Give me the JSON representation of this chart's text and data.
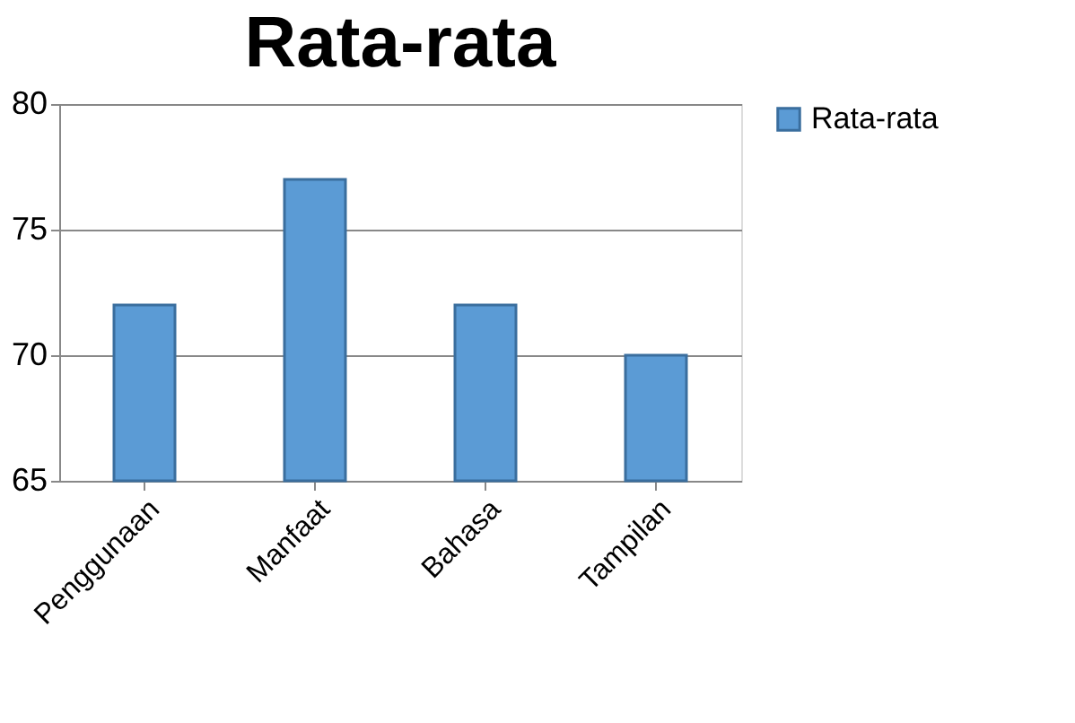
{
  "chart_data": {
    "type": "bar",
    "title": "Rata-rata",
    "categories": [
      "Penggunaan",
      "Manfaat",
      "Bahasa",
      "Tampilan"
    ],
    "series": [
      {
        "name": "Rata-rata",
        "color": "#5b9bd5",
        "values": [
          72,
          77,
          72,
          70
        ]
      }
    ],
    "ylim": [
      65,
      80
    ],
    "yticks": [
      65,
      70,
      75,
      80
    ],
    "grid": "y",
    "legend": "right"
  }
}
